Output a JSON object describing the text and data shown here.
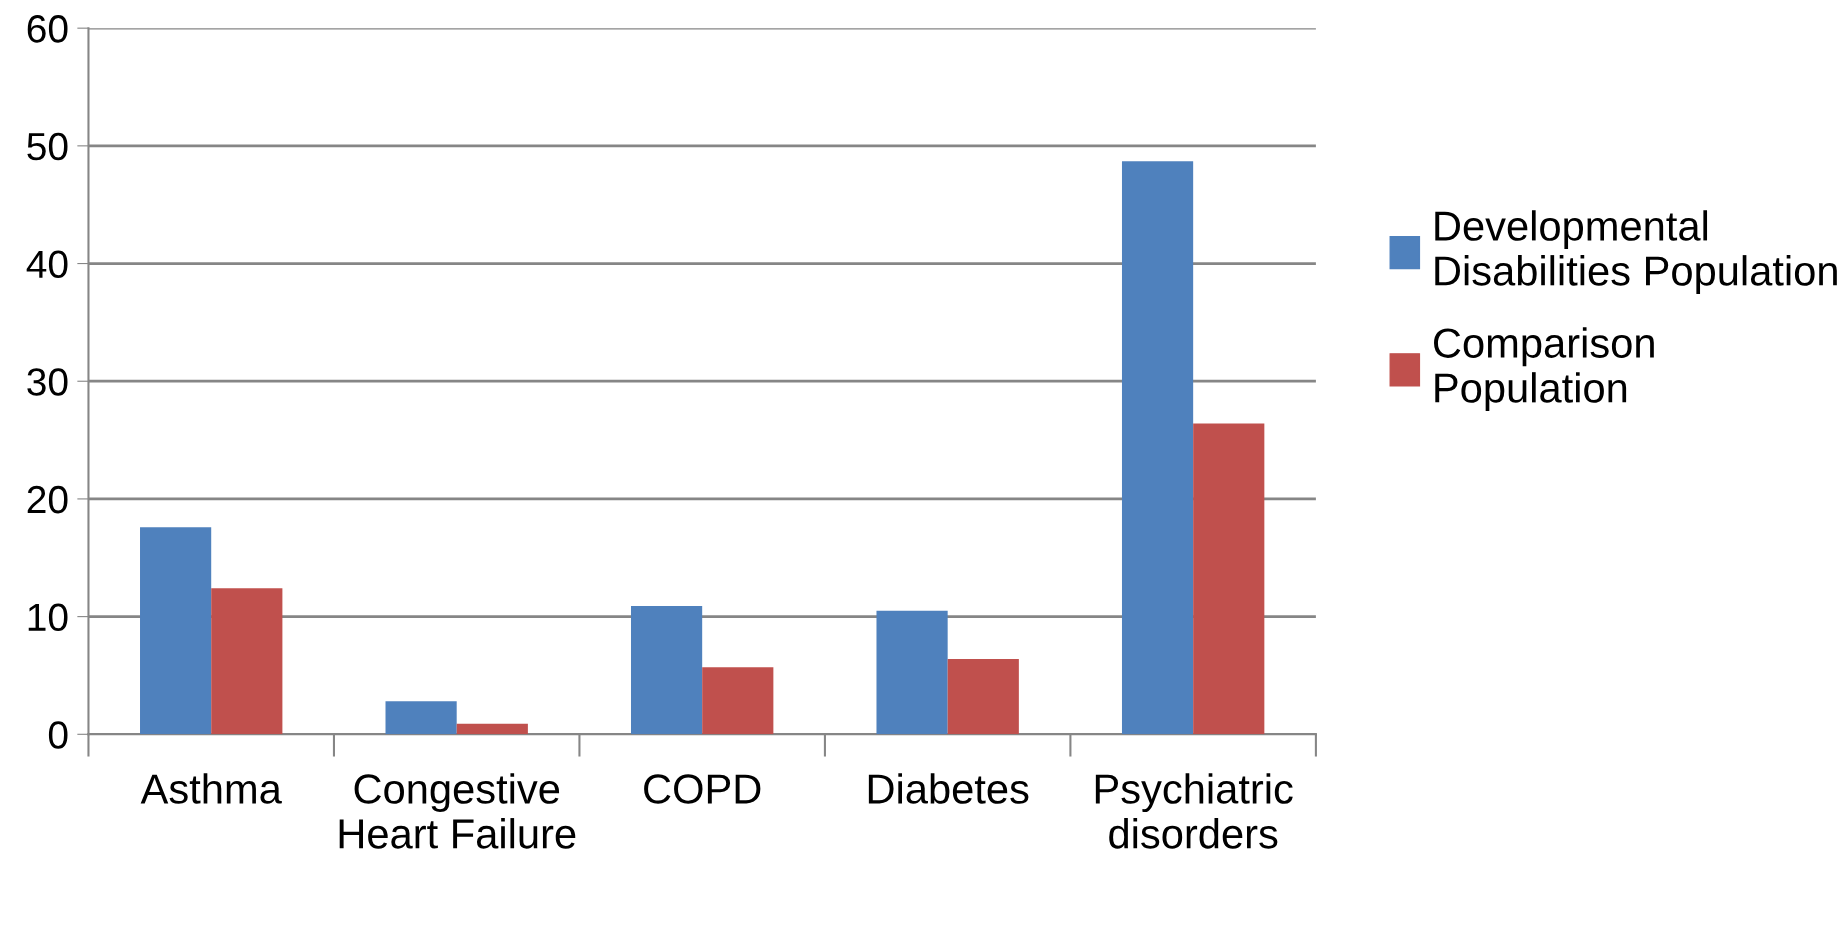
{
  "chart_data": {
    "type": "bar",
    "categories": [
      "Asthma",
      "Congestive\nHeart Failure",
      "COPD",
      "Diabetes",
      "Psychiatric\ndisorders"
    ],
    "series": [
      {
        "name": "Developmental\nDisabilities Population",
        "color": "#4f81bd",
        "values": [
          17.6,
          2.8,
          10.9,
          10.5,
          48.7
        ]
      },
      {
        "name": "Comparison\nPopulation",
        "color": "#c0504d",
        "values": [
          12.4,
          0.9,
          5.7,
          6.4,
          26.4
        ]
      }
    ],
    "ylim": [
      0,
      60
    ],
    "yticks": [
      0,
      10,
      20,
      30,
      40,
      50,
      60
    ],
    "grid": "y",
    "legend": "right"
  }
}
